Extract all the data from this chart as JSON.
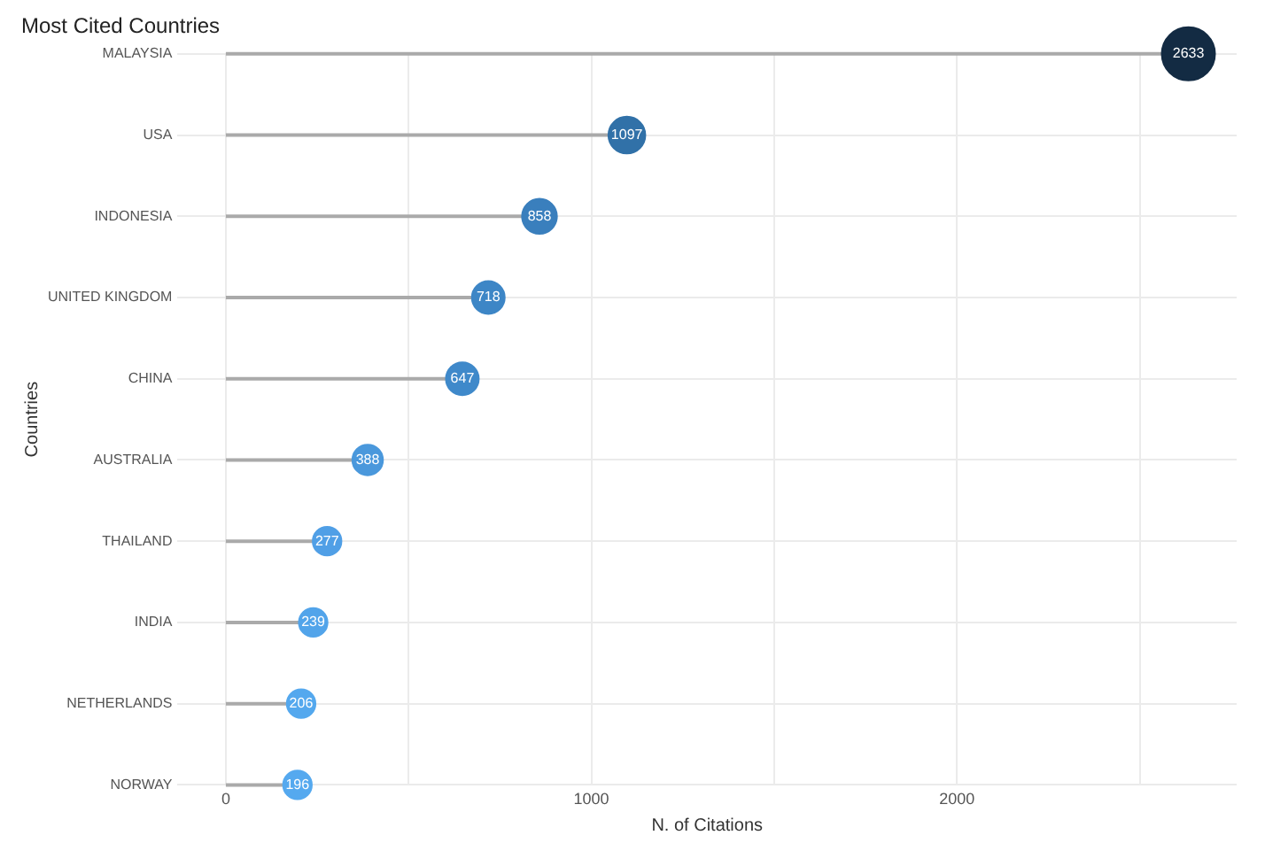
{
  "chart_data": {
    "type": "lollipop",
    "orientation": "horizontal",
    "title": "Most Cited Countries",
    "xlabel": "N. of Citations",
    "ylabel": "Countries",
    "categories": [
      "MALAYSIA",
      "USA",
      "INDONESIA",
      "UNITED KINGDOM",
      "CHINA",
      "AUSTRALIA",
      "THAILAND",
      "INDIA",
      "NETHERLANDS",
      "NORWAY"
    ],
    "values": [
      2633,
      1097,
      858,
      718,
      647,
      388,
      277,
      239,
      206,
      196
    ],
    "sizes": [
      1,
      0.48,
      0.43,
      0.38,
      0.38,
      0.33,
      0.29,
      0.29,
      0.29,
      0.29
    ],
    "colors": [
      "#132b43",
      "#3171a8",
      "#3a7fbd",
      "#3d86c6",
      "#3f89ca",
      "#4a98dc",
      "#509fe6",
      "#52a4ea",
      "#54a8ee",
      "#55a9ef"
    ],
    "xlim": [
      -132,
      2765
    ],
    "xticks": [
      0,
      {
        "value": 500,
        "label": null
      },
      1000,
      {
        "value": 1500,
        "label": null
      },
      2000,
      {
        "value": 2500,
        "label": null
      }
    ],
    "grid": true,
    "legend": false,
    "data_labels": true,
    "marker": "circle"
  }
}
